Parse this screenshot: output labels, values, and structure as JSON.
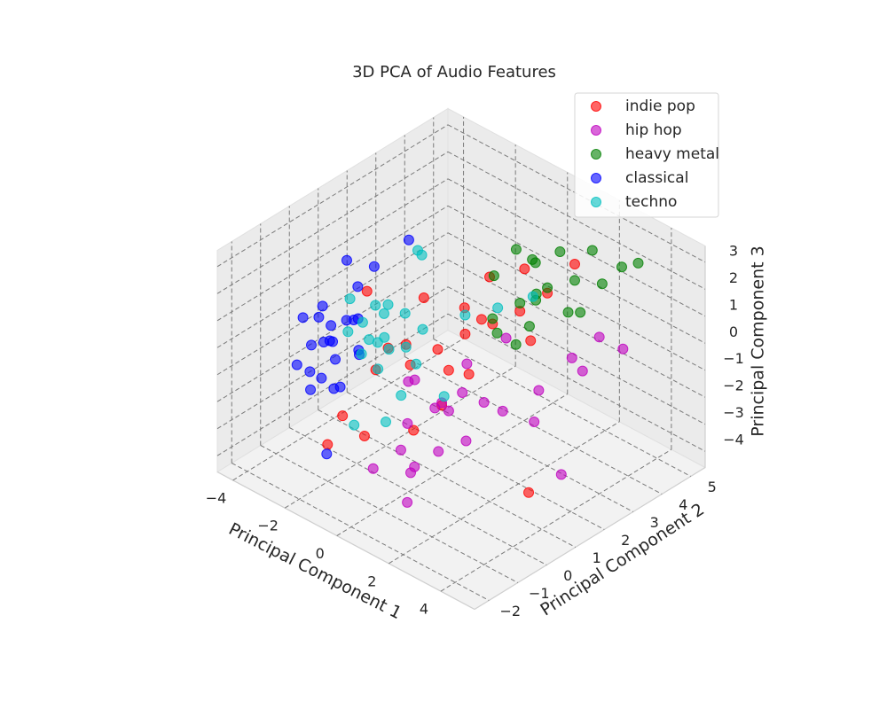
{
  "chart_data": {
    "type": "scatter3d",
    "title": "3D PCA of Audio Features",
    "xlabel": "Principal Component 1",
    "ylabel": "Principal Component 2",
    "zlabel": "Principal Component 3",
    "xlim": [
      -4.6,
      5.3
    ],
    "ylim": [
      -2.5,
      5.5
    ],
    "zlim": [
      -4.6,
      3.6
    ],
    "xticks": [
      {
        "value": -4,
        "label": "−4"
      },
      {
        "value": -2,
        "label": "−2"
      },
      0,
      2,
      4
    ],
    "yticks": [
      {
        "value": -2,
        "label": "−2"
      },
      {
        "value": -1,
        "label": "−1"
      },
      0,
      1,
      2,
      3,
      4,
      5
    ],
    "zticks": [
      {
        "value": -4,
        "label": "−4"
      },
      {
        "value": -3,
        "label": "−3"
      },
      {
        "value": -2,
        "label": "−2"
      },
      {
        "value": -1,
        "label": "−1"
      },
      0,
      1,
      2,
      3
    ],
    "grid": true,
    "legend": "upper right",
    "series": [
      {
        "name": "indie pop",
        "color": "#ff0000",
        "x": [
          0.0,
          -0.5,
          0.5,
          -1.0,
          1.0,
          0.2,
          -0.8,
          0.8,
          -0.3,
          1.5,
          -1.5,
          0.6,
          -2.0,
          1.2,
          0.0,
          -1.2,
          2.0,
          0.4,
          -2.5,
          3.5,
          1.8,
          -0.6,
          0.9,
          -1.8,
          2.5
        ],
        "y": [
          1.0,
          0.5,
          1.5,
          0.8,
          2.0,
          1.2,
          0.0,
          1.8,
          2.2,
          2.5,
          0.2,
          0.6,
          -0.5,
          1.0,
          2.8,
          1.6,
          3.0,
          -0.2,
          0.8,
          1.0,
          2.6,
          -1.0,
          3.2,
          -1.2,
          3.5
        ],
        "z": [
          0.0,
          -0.5,
          0.5,
          -0.2,
          0.8,
          -0.8,
          0.3,
          1.0,
          0.6,
          1.2,
          -1.0,
          -1.5,
          -2.5,
          -0.3,
          1.5,
          0.9,
          1.8,
          -2.0,
          1.0,
          -3.5,
          0.2,
          -2.2,
          2.0,
          -3.0,
          2.8
        ]
      },
      {
        "name": "hip hop",
        "color": "#bf00bf",
        "x": [
          1.0,
          0.5,
          1.5,
          0.8,
          1.2,
          2.0,
          0.2,
          1.8,
          0.6,
          1.4,
          2.5,
          0.0,
          1.1,
          2.2,
          0.9,
          3.5,
          4.0,
          3.0,
          2.8,
          1.6,
          4.2,
          3.8,
          2.6,
          0.4,
          1.3
        ],
        "y": [
          0.0,
          -0.5,
          0.5,
          -1.0,
          0.3,
          0.8,
          -0.2,
          -0.6,
          0.6,
          -1.2,
          1.0,
          0.2,
          -0.8,
          0.0,
          1.2,
          2.5,
          3.0,
          1.8,
          3.5,
          -1.5,
          1.5,
          4.0,
          2.0,
          -1.6,
          2.2
        ],
        "z": [
          -1.0,
          -1.5,
          -0.5,
          -2.0,
          -1.2,
          -0.8,
          -0.3,
          -1.8,
          -1.4,
          -2.4,
          -1.0,
          -0.6,
          -2.6,
          -1.6,
          -0.2,
          0.5,
          1.2,
          -0.5,
          -1.0,
          -3.2,
          -2.8,
          0.0,
          -2.0,
          -2.5,
          0.3
        ]
      },
      {
        "name": "heavy metal",
        "color": "#008000",
        "x": [
          1.5,
          2.0,
          1.0,
          2.5,
          1.8,
          1.2,
          3.0,
          2.2,
          0.8,
          1.6,
          2.8,
          1.4,
          3.2,
          2.4,
          0.5,
          1.9,
          2.6,
          1.1,
          3.5,
          2.0
        ],
        "y": [
          2.5,
          3.0,
          2.0,
          3.5,
          2.8,
          3.2,
          4.0,
          2.2,
          3.0,
          3.8,
          3.0,
          1.8,
          4.5,
          4.2,
          2.5,
          2.0,
          3.6,
          3.4,
          4.8,
          2.6
        ],
        "z": [
          1.5,
          2.0,
          1.0,
          2.2,
          1.8,
          2.5,
          2.0,
          1.2,
          2.8,
          2.6,
          1.5,
          0.8,
          2.4,
          2.8,
          2.0,
          0.5,
          1.0,
          2.2,
          2.5,
          1.8
        ]
      },
      {
        "name": "classical",
        "color": "#0000ff",
        "x": [
          -3.5,
          -3.2,
          -2.8,
          -3.0,
          -3.6,
          -2.5,
          -3.3,
          -2.9,
          -3.8,
          -2.6,
          -3.1,
          -3.4,
          -2.7,
          -3.0,
          -3.7,
          -2.4,
          -3.2,
          -2.9,
          -3.5,
          -2.2,
          -3.0,
          -3.3,
          -1.5,
          -2.0,
          -3.6
        ],
        "y": [
          0.2,
          -0.5,
          0.8,
          0.0,
          0.5,
          -0.3,
          1.2,
          -0.8,
          0.3,
          0.6,
          -0.2,
          0.9,
          -0.6,
          1.5,
          -0.1,
          0.4,
          -1.0,
          0.7,
          1.0,
          -0.4,
          0.1,
          -0.7,
          -1.5,
          1.8,
          0.6
        ],
        "z": [
          -1.0,
          -0.5,
          -1.5,
          0.0,
          -1.2,
          -0.8,
          0.5,
          -1.8,
          -0.3,
          -1.1,
          0.8,
          -0.6,
          -1.4,
          1.2,
          -2.0,
          0.3,
          -0.9,
          -0.2,
          1.5,
          -1.6,
          -2.4,
          0.6,
          -3.0,
          2.5,
          -1.3
        ]
      },
      {
        "name": "techno",
        "color": "#00bfbf",
        "x": [
          -1.5,
          -2.0,
          -1.0,
          -1.8,
          -1.2,
          -2.2,
          -0.8,
          -1.6,
          -1.4,
          -2.4,
          -0.5,
          -1.9,
          -1.1,
          -1.7,
          -1.3,
          0.5,
          1.2,
          -0.3,
          -2.6,
          0.0,
          -1.0,
          2.0,
          -1.5,
          0.8,
          -2.1
        ],
        "y": [
          0.5,
          0.2,
          0.8,
          0.9,
          0.0,
          0.6,
          1.2,
          -0.2,
          0.4,
          1.0,
          0.7,
          -0.4,
          0.3,
          1.4,
          0.1,
          1.5,
          2.0,
          0.0,
          0.3,
          -0.8,
          -1.0,
          2.5,
          1.8,
          0.5,
          2.2
        ],
        "z": [
          0.0,
          0.5,
          -0.3,
          0.8,
          0.3,
          -0.5,
          0.2,
          -0.2,
          1.0,
          0.4,
          -0.6,
          0.6,
          -0.1,
          0.2,
          -0.8,
          1.2,
          1.5,
          -1.2,
          1.0,
          -1.5,
          -2.0,
          2.0,
          2.2,
          -1.0,
          1.8
        ]
      }
    ]
  }
}
